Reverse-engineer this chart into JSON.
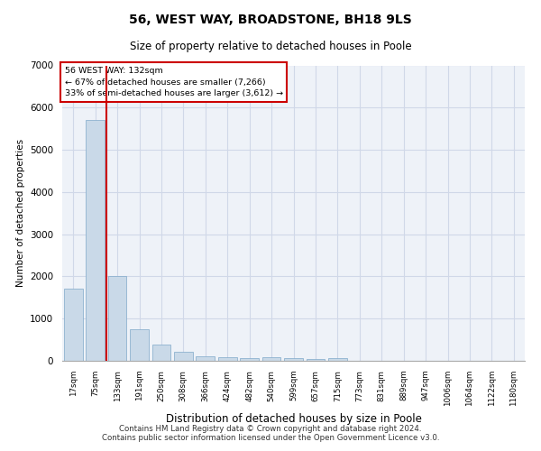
{
  "title1": "56, WEST WAY, BROADSTONE, BH18 9LS",
  "title2": "Size of property relative to detached houses in Poole",
  "xlabel": "Distribution of detached houses by size in Poole",
  "ylabel": "Number of detached properties",
  "categories": [
    "17sqm",
    "75sqm",
    "133sqm",
    "191sqm",
    "250sqm",
    "308sqm",
    "366sqm",
    "424sqm",
    "482sqm",
    "540sqm",
    "599sqm",
    "657sqm",
    "715sqm",
    "773sqm",
    "831sqm",
    "889sqm",
    "947sqm",
    "1006sqm",
    "1064sqm",
    "1122sqm",
    "1180sqm"
  ],
  "values": [
    1700,
    5700,
    2000,
    750,
    390,
    210,
    100,
    75,
    55,
    90,
    70,
    45,
    70,
    0,
    0,
    0,
    0,
    0,
    0,
    0,
    0
  ],
  "bar_color": "#c9d9e8",
  "bar_edge_color": "#7fa8c9",
  "grid_color": "#d0d8e8",
  "background_color": "#eef2f8",
  "annotation_box_color": "#ffffff",
  "annotation_box_edge": "#cc0000",
  "red_line_color": "#cc0000",
  "annotation_line1": "56 WEST WAY: 132sqm",
  "annotation_line2": "← 67% of detached houses are smaller (7,266)",
  "annotation_line3": "33% of semi-detached houses are larger (3,612) →",
  "red_line_x": 1.5,
  "ylim": [
    0,
    7000
  ],
  "yticks": [
    0,
    1000,
    2000,
    3000,
    4000,
    5000,
    6000,
    7000
  ],
  "footer1": "Contains HM Land Registry data © Crown copyright and database right 2024.",
  "footer2": "Contains public sector information licensed under the Open Government Licence v3.0."
}
